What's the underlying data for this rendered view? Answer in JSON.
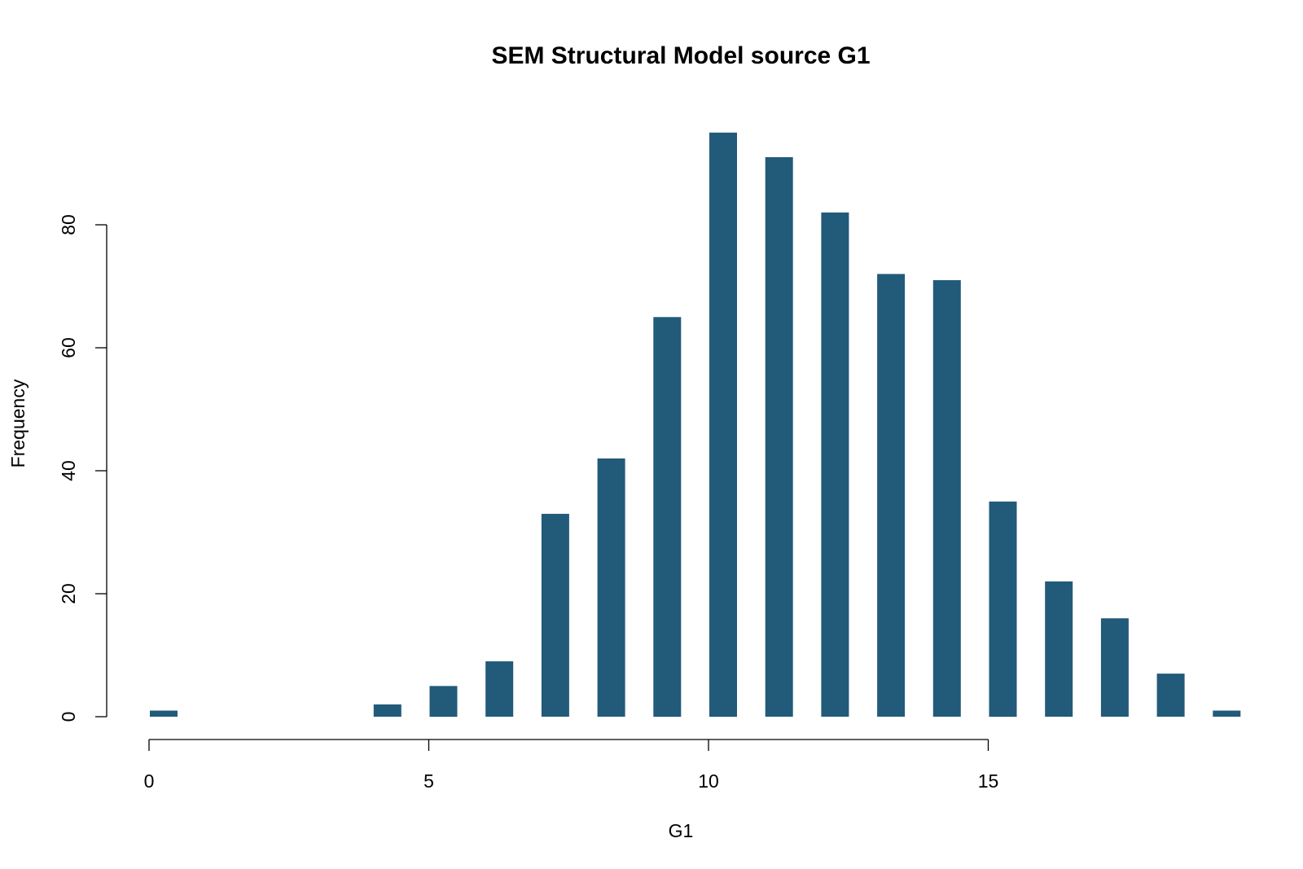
{
  "chart_data": {
    "type": "bar",
    "title": "SEM Structural Model source G1",
    "xlabel": "G1",
    "ylabel": "Frequency",
    "bar_color": "#225a7a",
    "x": [
      0,
      4,
      5,
      6,
      7,
      8,
      9,
      10,
      11,
      12,
      13,
      14,
      15,
      16,
      17,
      18,
      19
    ],
    "values": [
      1,
      2,
      5,
      9,
      33,
      42,
      65,
      95,
      91,
      82,
      72,
      71,
      35,
      22,
      16,
      7,
      1
    ],
    "xlim": [
      0,
      19
    ],
    "ylim": [
      0,
      95
    ],
    "xticks": [
      0,
      5,
      10,
      15
    ],
    "yticks": [
      0,
      20,
      40,
      60,
      80
    ],
    "grid": false,
    "legend": "none"
  }
}
